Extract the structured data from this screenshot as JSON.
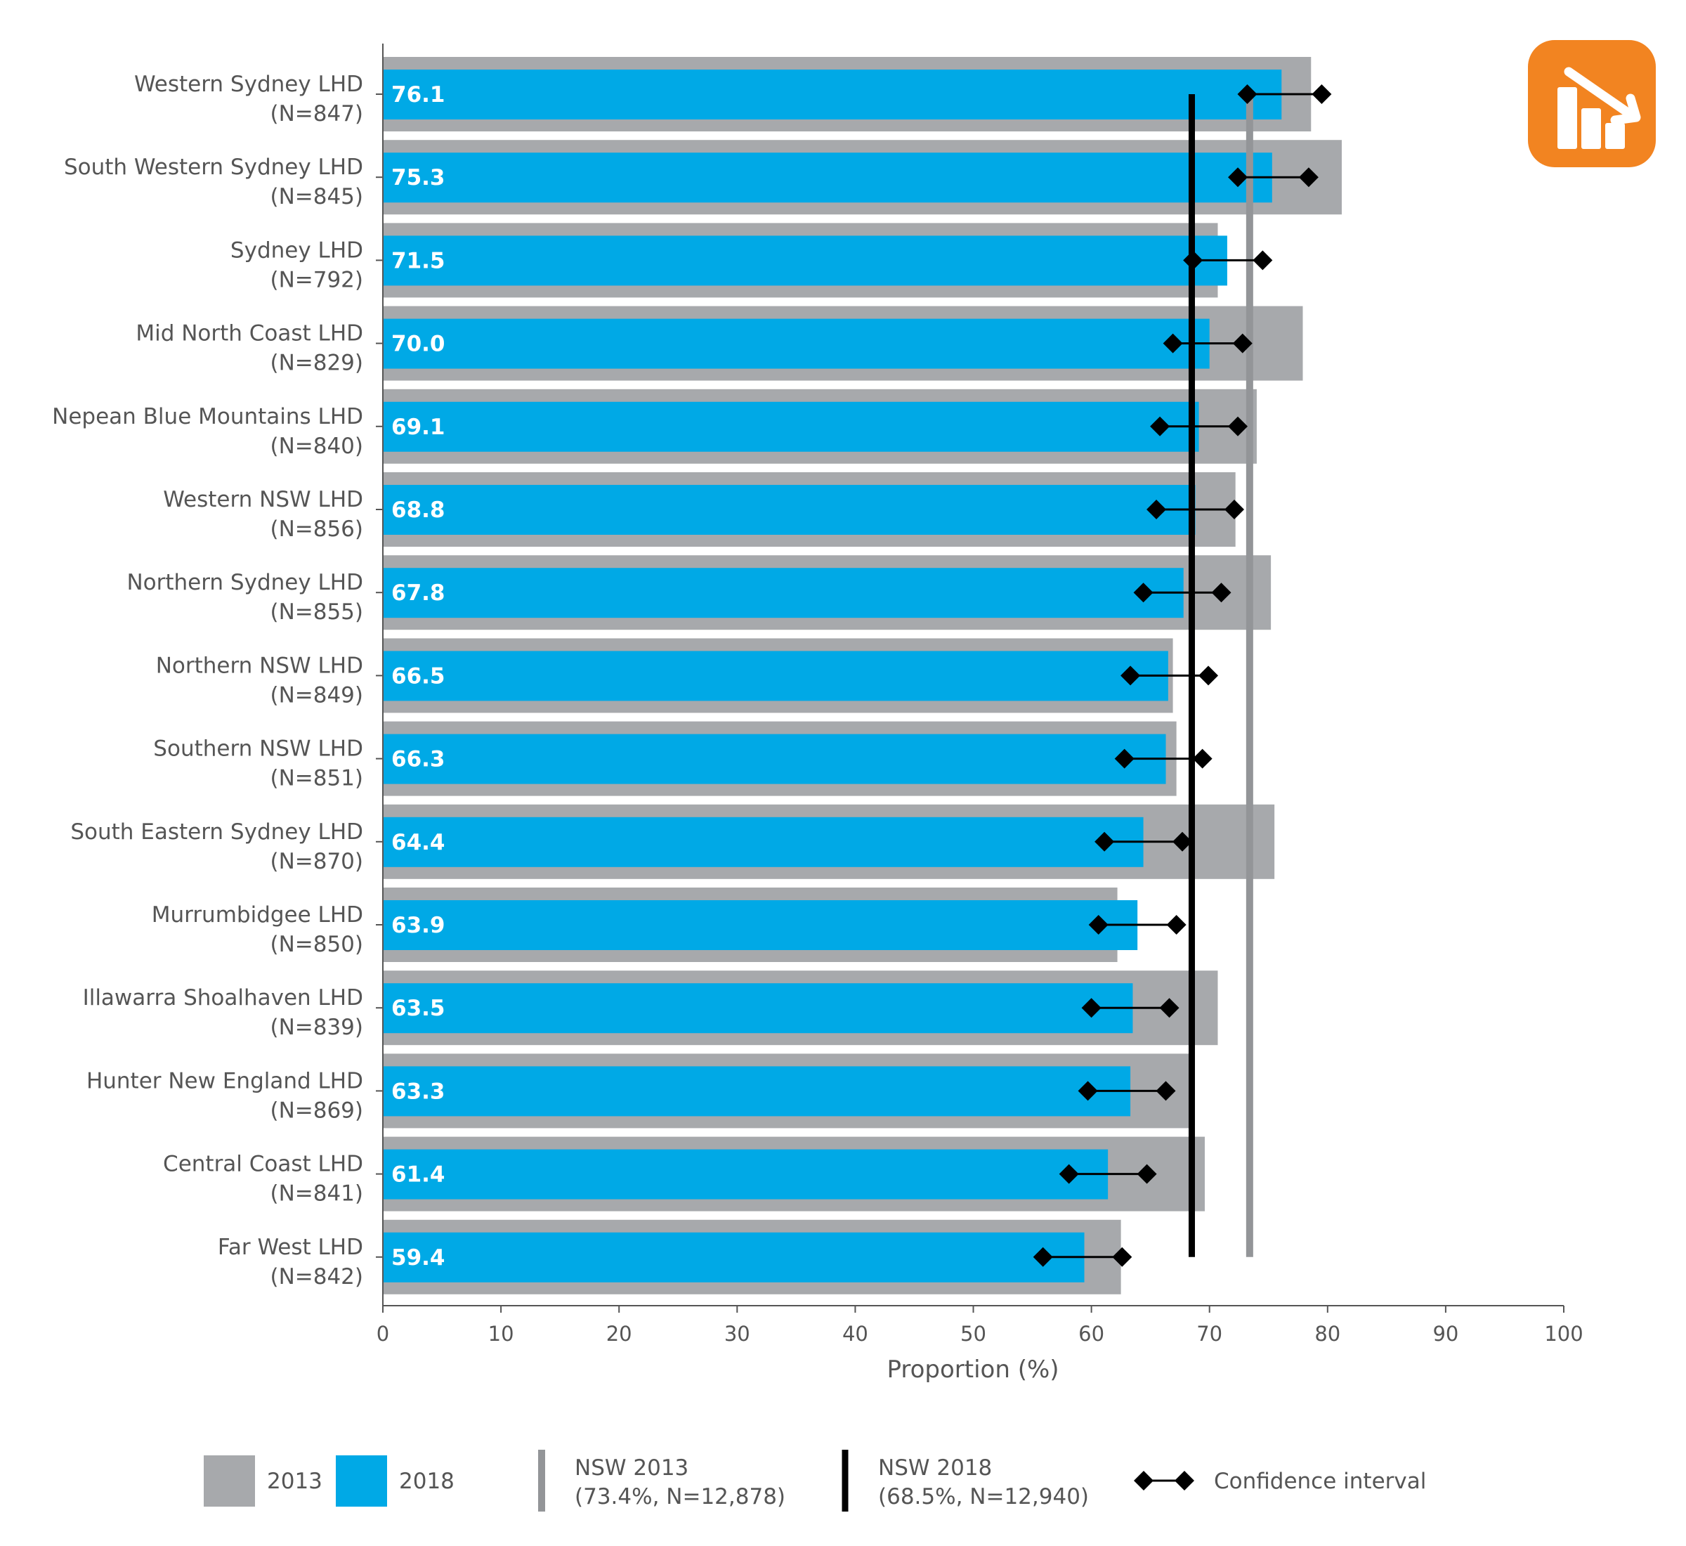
{
  "chart_data": {
    "type": "bar",
    "orientation": "horizontal",
    "xlabel": "Proportion (%)",
    "ylabel": "",
    "xlim": [
      0,
      100
    ],
    "xticks": [
      0,
      10,
      20,
      30,
      40,
      50,
      60,
      70,
      80,
      90,
      100
    ],
    "grid": false,
    "legend_position": "bottom",
    "categories": [
      {
        "name": "Western Sydney LHD",
        "n": "(N=847)"
      },
      {
        "name": "South Western Sydney LHD",
        "n": "(N=845)"
      },
      {
        "name": "Sydney LHD",
        "n": "(N=792)"
      },
      {
        "name": "Mid North Coast LHD",
        "n": "(N=829)"
      },
      {
        "name": "Nepean Blue Mountains LHD",
        "n": "(N=840)"
      },
      {
        "name": "Western NSW LHD",
        "n": "(N=856)"
      },
      {
        "name": "Northern Sydney LHD",
        "n": "(N=855)"
      },
      {
        "name": "Northern NSW LHD",
        "n": "(N=849)"
      },
      {
        "name": "Southern NSW LHD",
        "n": "(N=851)"
      },
      {
        "name": "South Eastern Sydney LHD",
        "n": "(N=870)"
      },
      {
        "name": "Murrumbidgee LHD",
        "n": "(N=850)"
      },
      {
        "name": "Illawarra Shoalhaven LHD",
        "n": "(N=839)"
      },
      {
        "name": "Hunter New England LHD",
        "n": "(N=869)"
      },
      {
        "name": "Central Coast LHD",
        "n": "(N=841)"
      },
      {
        "name": "Far West LHD",
        "n": "(N=842)"
      }
    ],
    "series": [
      {
        "name": "2013",
        "color": "#a7a9ac",
        "values": [
          78.6,
          81.2,
          70.7,
          77.9,
          74.0,
          72.2,
          75.2,
          66.9,
          67.2,
          75.5,
          62.2,
          70.7,
          68.3,
          69.6,
          62.5
        ]
      },
      {
        "name": "2018",
        "color": "#00a9e6",
        "values": [
          76.1,
          75.3,
          71.5,
          70.0,
          69.1,
          68.8,
          67.8,
          66.5,
          66.3,
          64.4,
          63.9,
          63.5,
          63.3,
          61.4,
          59.4
        ],
        "labels": [
          "76.1",
          "75.3",
          "71.5",
          "70.0",
          "69.1",
          "68.8",
          "67.8",
          "66.5",
          "66.3",
          "64.4",
          "63.9",
          "63.5",
          "63.3",
          "61.4",
          "59.4"
        ]
      }
    ],
    "confidence_interval": {
      "name": "Confidence interval",
      "lower": [
        73.2,
        72.4,
        68.6,
        66.9,
        65.8,
        65.5,
        64.4,
        63.3,
        62.8,
        61.1,
        60.6,
        60.0,
        59.7,
        58.1,
        55.9
      ],
      "upper": [
        79.5,
        78.4,
        74.5,
        72.8,
        72.4,
        72.1,
        71.0,
        69.9,
        69.4,
        67.7,
        67.2,
        66.6,
        66.3,
        64.7,
        62.6
      ]
    },
    "reference_lines": [
      {
        "name": "NSW 2013",
        "detail": "(73.4%, N=12,878)",
        "value": 73.4,
        "color": "#939598"
      },
      {
        "name": "NSW 2018",
        "detail": "(68.5%, N=12,940)",
        "value": 68.5,
        "color": "#000000"
      }
    ]
  },
  "icon": {
    "name": "chart-decrease-icon",
    "color": "#f28421"
  }
}
